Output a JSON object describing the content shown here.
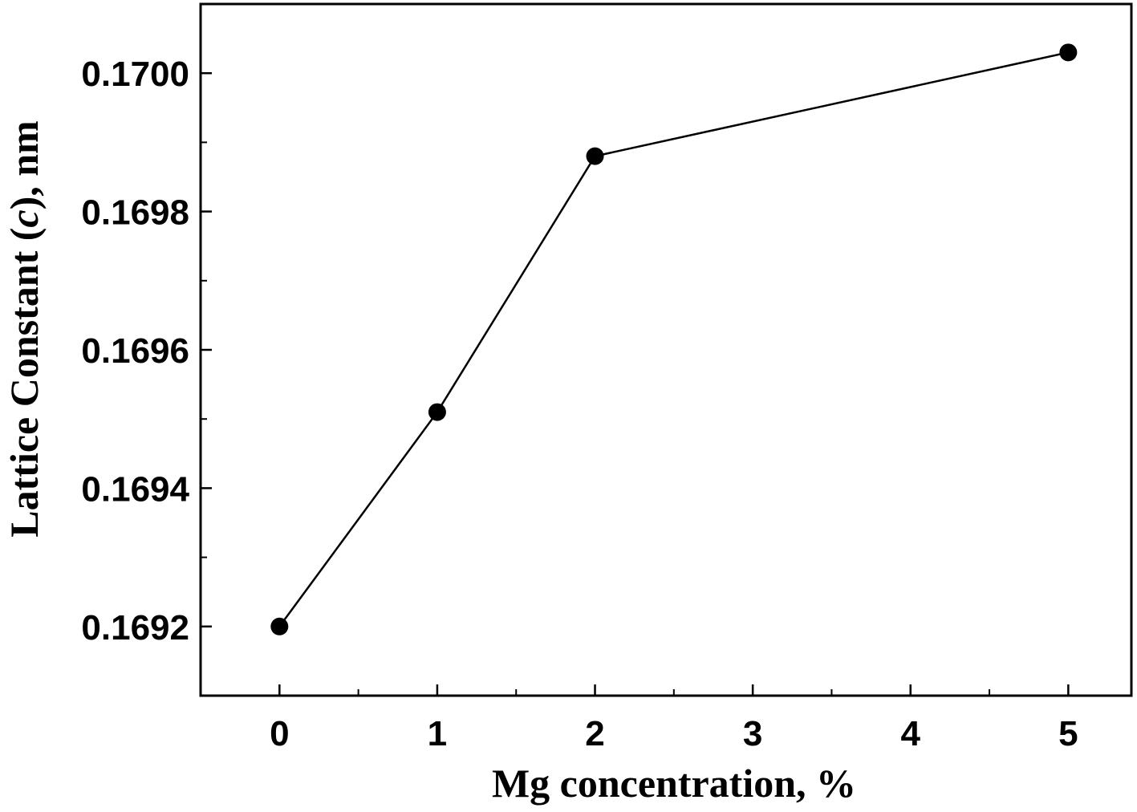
{
  "chart_data": {
    "type": "line",
    "title": "",
    "xlabel": "Mg concentration, %",
    "ylabel_parts": {
      "before": "Lattice Constant (",
      "italic": "c",
      "after": "), nm"
    },
    "x_ticks": [
      "0",
      "1",
      "2",
      "3",
      "4",
      "5"
    ],
    "y_ticks": [
      "0.1692",
      "0.1694",
      "0.1696",
      "0.1698",
      "0.1700"
    ],
    "xlim": [
      -0.5,
      5.4
    ],
    "ylim": [
      0.1691,
      0.1701
    ],
    "grid": false,
    "series": [
      {
        "x": [
          0,
          1,
          2,
          5
        ],
        "y": [
          0.1692,
          0.16951,
          0.16988,
          0.17003
        ],
        "marker": "circle",
        "color": "#000000"
      }
    ]
  }
}
